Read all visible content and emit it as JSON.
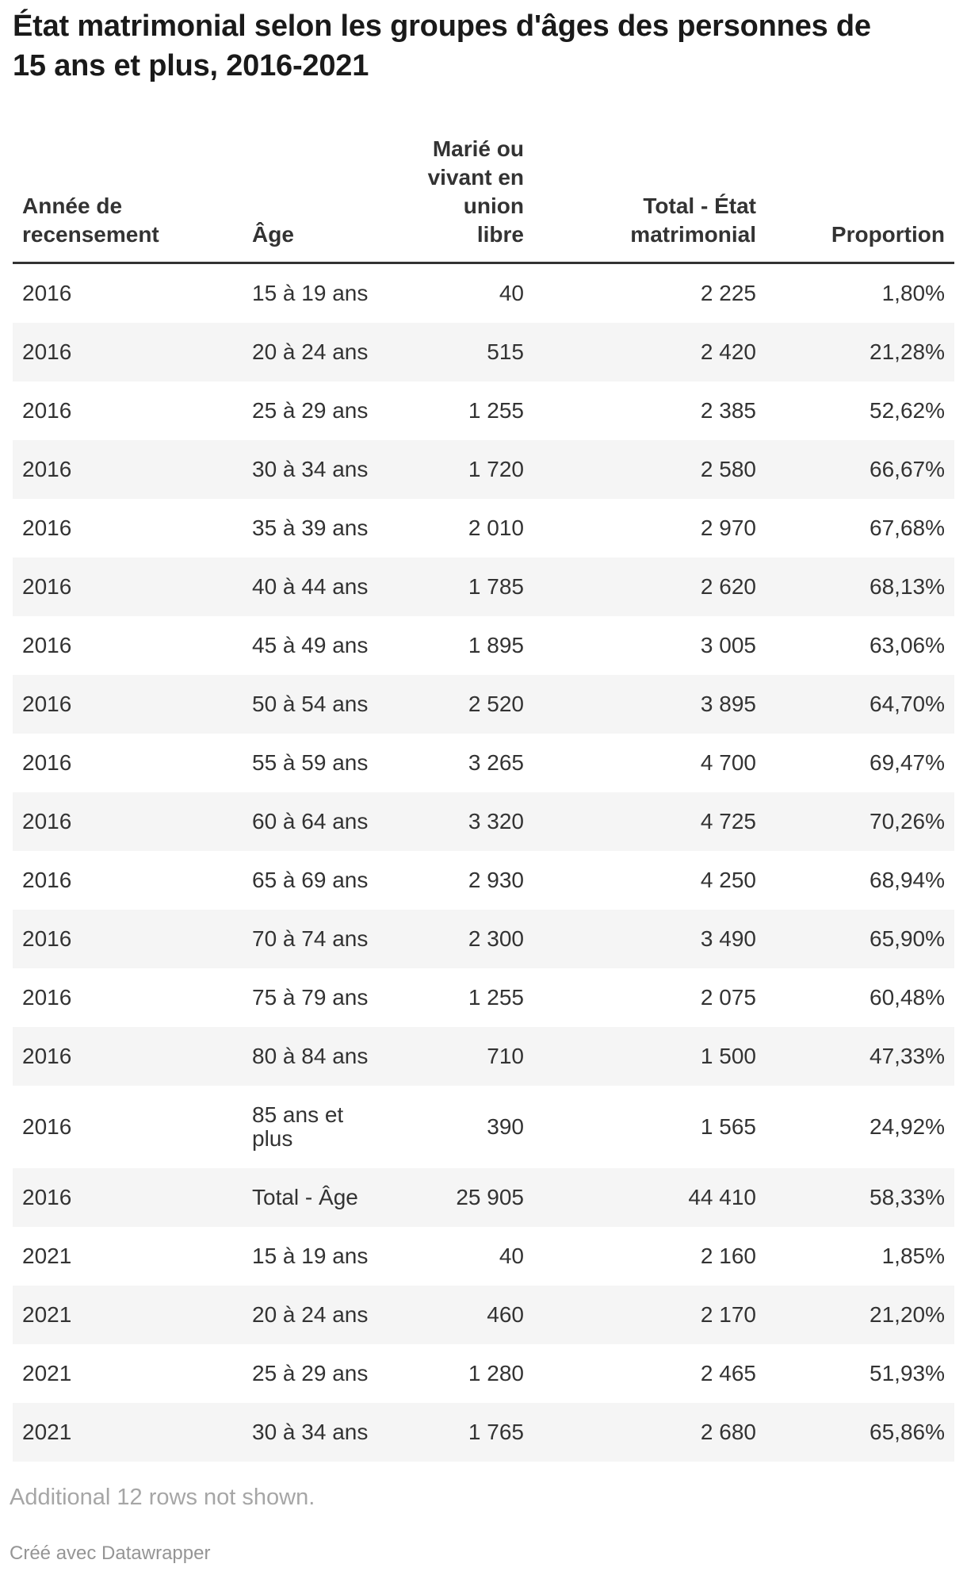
{
  "chart_data": {
    "type": "table",
    "title": "État matrimonial selon les groupes d'âges des personnes de\n15 ans et plus, 2016-2021",
    "columns": [
      {
        "label": "Année de\nrecensement",
        "align": "left"
      },
      {
        "label": "Âge",
        "align": "left"
      },
      {
        "label": "Marié ou\nvivant en\nunion\nlibre",
        "align": "right"
      },
      {
        "label": "Total - État\nmatrimonial",
        "align": "right"
      },
      {
        "label": "Proportion",
        "align": "right"
      }
    ],
    "rows": [
      [
        "2016",
        "15 à 19 ans",
        "40",
        "2 225",
        "1,80%"
      ],
      [
        "2016",
        "20 à 24 ans",
        "515",
        "2 420",
        "21,28%"
      ],
      [
        "2016",
        "25 à 29 ans",
        "1 255",
        "2 385",
        "52,62%"
      ],
      [
        "2016",
        "30 à 34 ans",
        "1 720",
        "2 580",
        "66,67%"
      ],
      [
        "2016",
        "35 à 39 ans",
        "2 010",
        "2 970",
        "67,68%"
      ],
      [
        "2016",
        "40 à 44 ans",
        "1 785",
        "2 620",
        "68,13%"
      ],
      [
        "2016",
        "45 à 49 ans",
        "1 895",
        "3 005",
        "63,06%"
      ],
      [
        "2016",
        "50 à 54 ans",
        "2 520",
        "3 895",
        "64,70%"
      ],
      [
        "2016",
        "55 à 59 ans",
        "3 265",
        "4 700",
        "69,47%"
      ],
      [
        "2016",
        "60 à 64 ans",
        "3 320",
        "4 725",
        "70,26%"
      ],
      [
        "2016",
        "65 à 69 ans",
        "2 930",
        "4 250",
        "68,94%"
      ],
      [
        "2016",
        "70 à 74 ans",
        "2 300",
        "3 490",
        "65,90%"
      ],
      [
        "2016",
        "75 à 79 ans",
        "1 255",
        "2 075",
        "60,48%"
      ],
      [
        "2016",
        "80 à 84 ans",
        "710",
        "1 500",
        "47,33%"
      ],
      [
        "2016",
        "85 ans et plus",
        "390",
        "1 565",
        "24,92%"
      ],
      [
        "2016",
        "Total - Âge",
        "25 905",
        "44 410",
        "58,33%"
      ],
      [
        "2021",
        "15 à 19 ans",
        "40",
        "2 160",
        "1,85%"
      ],
      [
        "2021",
        "20 à 24 ans",
        "460",
        "2 170",
        "21,20%"
      ],
      [
        "2021",
        "25 à 29 ans",
        "1 280",
        "2 465",
        "51,93%"
      ],
      [
        "2021",
        "30 à 34 ans",
        "1 765",
        "2 680",
        "65,86%"
      ]
    ],
    "layout": {
      "striped_rows": true,
      "stripe_on": "even"
    }
  },
  "footer": {
    "note": "Additional 12 rows not shown.",
    "credit": "Créé avec Datawrapper"
  },
  "colors": {
    "stripe": "#f5f5f5",
    "header_border": "#333333",
    "text": "#333333",
    "title": "#1a1a1a",
    "muted_note": "#a6a6a6",
    "muted_credit": "#959595"
  }
}
